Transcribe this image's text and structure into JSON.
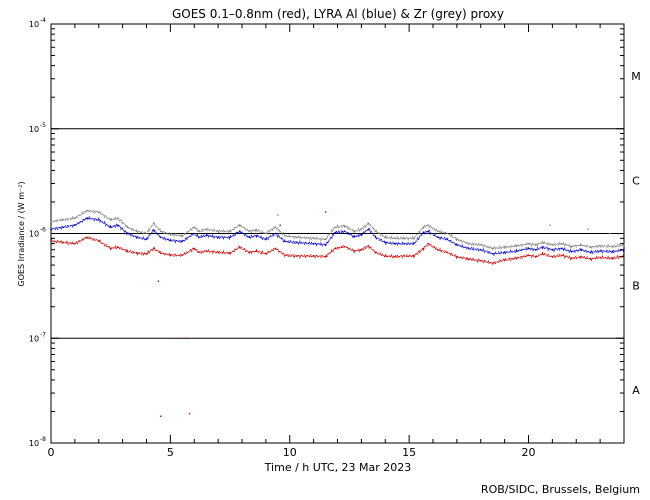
{
  "chart_data": {
    "type": "scatter",
    "title": "GOES 0.1–0.8nm (red), LYRA Al (blue) & Zr (grey) proxy",
    "xlabel": "Time / h UTC, 23 Mar 2023",
    "ylabel": "GOES Irradiance / (W m⁻²)",
    "xlim": [
      0,
      24
    ],
    "ylim": [
      1e-08,
      0.0001
    ],
    "yscale": "log",
    "grid": false,
    "x_ticks": [
      0,
      5,
      10,
      15,
      20
    ],
    "x_tick_labels": [
      "0",
      "5",
      "10",
      "15",
      "20"
    ],
    "y_ticks": [
      {
        "value": 1e-08,
        "base": "10",
        "exp": "-8"
      },
      {
        "value": 1e-07,
        "base": "10",
        "exp": "-7"
      },
      {
        "value": 1e-06,
        "base": "10",
        "exp": "-6"
      },
      {
        "value": 1e-05,
        "base": "10",
        "exp": "-5"
      },
      {
        "value": 0.0001,
        "base": "10",
        "exp": "-4"
      }
    ],
    "class_lines": [
      1e-07,
      1e-06,
      1e-05
    ],
    "flare_classes": [
      {
        "label": "A",
        "value": 3.2e-08
      },
      {
        "label": "B",
        "value": 3.2e-07
      },
      {
        "label": "C",
        "value": 3.2e-06
      },
      {
        "label": "M",
        "value": 3.2e-05
      }
    ],
    "series": [
      {
        "color": "#808080",
        "x": [
          0,
          0.5,
          1,
          1.5,
          2,
          2.5,
          2.8,
          3.2,
          3.6,
          4,
          4.3,
          4.6,
          5,
          5.5,
          6,
          6.2,
          6.5,
          7,
          7.5,
          7.9,
          8.3,
          8.6,
          9,
          9.4,
          9.8,
          10.3,
          11,
          11.5,
          11.9,
          12.3,
          12.7,
          13,
          13.3,
          13.6,
          14,
          14.4,
          14.8,
          15.2,
          15.6,
          15.8,
          16.2,
          16.6,
          17,
          17.5,
          18,
          18.5,
          19,
          19.5,
          20,
          20.3,
          20.6,
          21,
          21.4,
          21.8,
          22.2,
          22.6,
          23,
          23.5,
          24
        ],
        "y": [
          1.3e-06,
          1.35e-06,
          1.4e-06,
          1.65e-06,
          1.6e-06,
          1.35e-06,
          1.4e-06,
          1.15e-06,
          1.05e-06,
          1e-06,
          1.25e-06,
          1.05e-06,
          9.8e-07,
          9.5e-07,
          1.15e-06,
          1.05e-06,
          1.1e-06,
          1.05e-06,
          1.05e-06,
          1.2e-06,
          1.05e-06,
          1.08e-06,
          1e-06,
          1.15e-06,
          9.5e-07,
          9.2e-07,
          9e-07,
          8.8e-07,
          1.15e-06,
          1.18e-06,
          1.05e-06,
          1.1e-06,
          1.25e-06,
          1.05e-06,
          9.2e-07,
          9e-07,
          9e-07,
          9e-07,
          1.15e-06,
          1.2e-06,
          1.05e-06,
          1e-06,
          8.8e-07,
          8e-07,
          7.8e-07,
          7.2e-07,
          7.4e-07,
          7.6e-07,
          8e-07,
          7.8e-07,
          8.2e-07,
          7.8e-07,
          8e-07,
          7.5e-07,
          7.8e-07,
          7.4e-07,
          7.6e-07,
          7.5e-07,
          7.8e-07
        ]
      },
      {
        "color": "#0000cc",
        "x": [
          0,
          0.5,
          1,
          1.5,
          2,
          2.5,
          2.8,
          3.2,
          3.6,
          4,
          4.3,
          4.6,
          5,
          5.5,
          6,
          6.2,
          6.5,
          7,
          7.5,
          7.9,
          8.3,
          8.6,
          9,
          9.4,
          9.8,
          10.3,
          11,
          11.5,
          11.9,
          12.3,
          12.7,
          13,
          13.3,
          13.6,
          14,
          14.4,
          14.8,
          15.2,
          15.6,
          15.8,
          16.2,
          16.6,
          17,
          17.5,
          18,
          18.5,
          19,
          19.5,
          20,
          20.3,
          20.6,
          21,
          21.4,
          21.8,
          22.2,
          22.6,
          23,
          23.5,
          24
        ],
        "y": [
          1.1e-06,
          1.15e-06,
          1.2e-06,
          1.4e-06,
          1.35e-06,
          1.15e-06,
          1.2e-06,
          1e-06,
          9.2e-07,
          8.8e-07,
          1.08e-06,
          9.2e-07,
          8.6e-07,
          8.4e-07,
          1e-06,
          9.2e-07,
          9.6e-07,
          9.2e-07,
          9.2e-07,
          1.05e-06,
          9.2e-07,
          9.5e-07,
          8.8e-07,
          1e-06,
          8.4e-07,
          8.2e-07,
          8e-07,
          7.8e-07,
          1.02e-06,
          1.05e-06,
          9.3e-07,
          9.7e-07,
          1.1e-06,
          9.2e-07,
          8.2e-07,
          8e-07,
          8e-07,
          8e-07,
          1.02e-06,
          1.05e-06,
          9.2e-07,
          8.8e-07,
          7.8e-07,
          7.2e-07,
          7e-07,
          6.4e-07,
          6.6e-07,
          6.8e-07,
          7.2e-07,
          7e-07,
          7.4e-07,
          7e-07,
          7.2e-07,
          6.7e-07,
          7e-07,
          6.6e-07,
          6.8e-07,
          6.7e-07,
          7e-07
        ]
      },
      {
        "color": "#cc0000",
        "x": [
          0,
          0.5,
          1,
          1.5,
          2,
          2.5,
          2.8,
          3.2,
          3.6,
          4,
          4.3,
          4.6,
          5,
          5.5,
          6,
          6.2,
          6.5,
          7,
          7.5,
          7.9,
          8.3,
          8.6,
          9,
          9.4,
          9.8,
          10.3,
          11,
          11.5,
          11.9,
          12.3,
          12.7,
          13,
          13.3,
          13.6,
          14,
          14.4,
          14.8,
          15.2,
          15.6,
          15.8,
          16.2,
          16.6,
          17,
          17.5,
          18,
          18.5,
          19,
          19.5,
          20,
          20.3,
          20.6,
          21,
          21.4,
          21.8,
          22.2,
          22.6,
          23,
          23.5,
          24
        ],
        "y": [
          8.5e-07,
          8.2e-07,
          8e-07,
          9.2e-07,
          8.5e-07,
          7.2e-07,
          7.4e-07,
          6.8e-07,
          6.5e-07,
          6.4e-07,
          7.2e-07,
          6.5e-07,
          6.2e-07,
          6.2e-07,
          7.2e-07,
          6.6e-07,
          6.8e-07,
          6.6e-07,
          6.5e-07,
          7.4e-07,
          6.6e-07,
          6.8e-07,
          6.4e-07,
          7.2e-07,
          6.2e-07,
          6.1e-07,
          6.1e-07,
          6e-07,
          7.2e-07,
          7.5e-07,
          6.8e-07,
          7e-07,
          7.6e-07,
          6.6e-07,
          6.1e-07,
          6e-07,
          6.1e-07,
          6.1e-07,
          7.2e-07,
          8e-07,
          7e-07,
          6.6e-07,
          6e-07,
          5.7e-07,
          5.5e-07,
          5.2e-07,
          5.6e-07,
          5.8e-07,
          6.2e-07,
          6e-07,
          6.4e-07,
          6e-07,
          6.2e-07,
          5.8e-07,
          6e-07,
          5.7e-07,
          5.9e-07,
          5.8e-07,
          6.1e-07
        ]
      }
    ],
    "outliers": [
      {
        "x": 4.5,
        "y": 3.5e-07,
        "color": "#cc0000"
      },
      {
        "x": 5.7,
        "y": 1e-07,
        "color": "#cc0000"
      },
      {
        "x": 4.6,
        "y": 1.8e-08,
        "color": "#cc0000"
      },
      {
        "x": 5.8,
        "y": 1.9e-08,
        "color": "#cc0000"
      },
      {
        "x": 11.5,
        "y": 1.6e-06,
        "color": "#cc0000"
      },
      {
        "x": 9.5,
        "y": 1.5e-06,
        "color": "#808080"
      },
      {
        "x": 9.6,
        "y": 1.2e-06,
        "color": "#cc0000"
      },
      {
        "x": 20.9,
        "y": 1.2e-06,
        "color": "#808080"
      },
      {
        "x": 22.5,
        "y": 1.1e-06,
        "color": "#808080"
      },
      {
        "x": 23.4,
        "y": 1e-06,
        "color": "#808080"
      }
    ]
  },
  "credit": "ROB/SIDC, Brussels, Belgium"
}
